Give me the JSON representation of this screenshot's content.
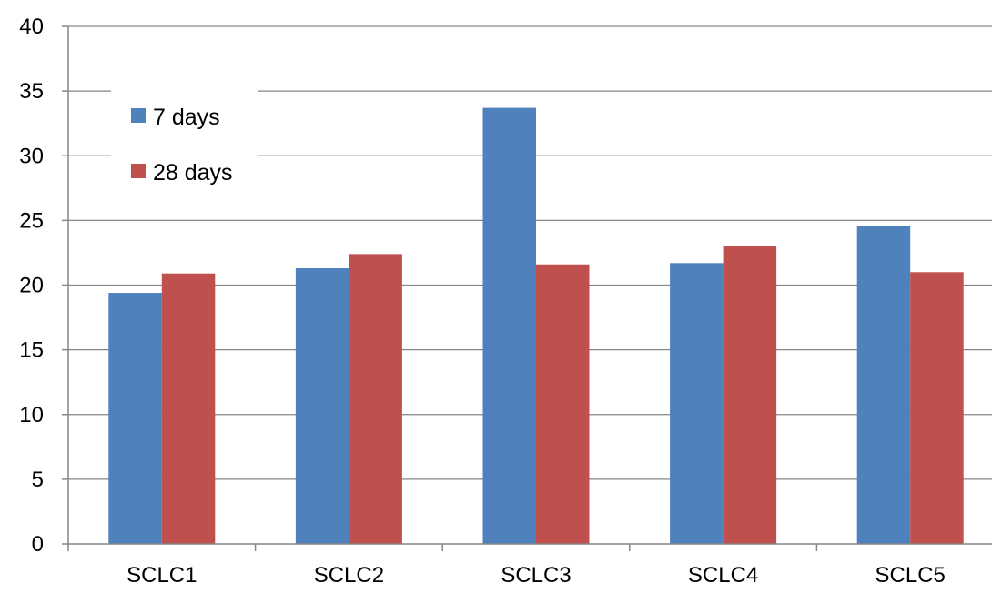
{
  "chart_data": {
    "type": "bar",
    "title": "",
    "xlabel": "",
    "ylabel": "",
    "categories": [
      "SCLC1",
      "SCLC2",
      "SCLC3",
      "SCLC4",
      "SCLC5"
    ],
    "series": [
      {
        "name": "7 days",
        "color": "#4F81BD",
        "values": [
          19.4,
          21.3,
          33.7,
          21.7,
          24.6
        ]
      },
      {
        "name": "28 days",
        "color": "#C0504D",
        "values": [
          20.9,
          22.4,
          21.6,
          23.0,
          21.0
        ]
      }
    ],
    "ylim": [
      0,
      40
    ],
    "yticks": [
      0,
      5,
      10,
      15,
      20,
      25,
      30,
      35,
      40
    ],
    "grid": true,
    "gridline_color": "#868686",
    "legend_position": "top-left"
  }
}
